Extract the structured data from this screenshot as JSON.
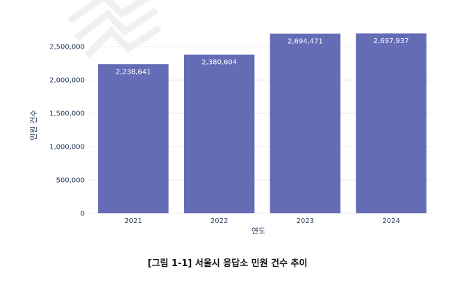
{
  "chart_data": {
    "type": "bar",
    "categories": [
      "2021",
      "2022",
      "2023",
      "2024"
    ],
    "values": [
      2238641,
      2380604,
      2694471,
      2697937
    ],
    "value_labels": [
      "2,238,641",
      "2,380,604",
      "2,694,471",
      "2,697,937"
    ],
    "xlabel": "연도",
    "ylabel": "민원 건수",
    "ylim": [
      0,
      2700000
    ],
    "yticks": [
      0,
      500000,
      1000000,
      1500000,
      2000000,
      2500000
    ],
    "ytick_labels": [
      "0",
      "500,000",
      "1,000,000",
      "1,500,000",
      "2,000,000",
      "2,500,000"
    ],
    "grid": true,
    "bar_color": "#636cb5"
  },
  "caption": "[그림 1-1] 서울시 응답소 민원 건수 추이"
}
